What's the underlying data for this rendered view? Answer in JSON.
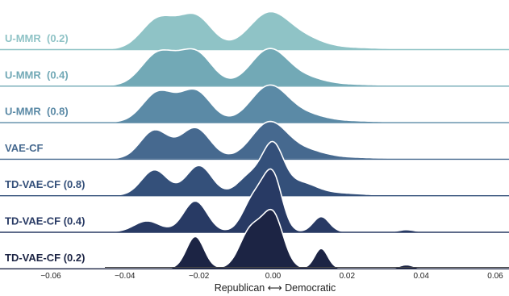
{
  "chart_data": {
    "type": "area",
    "title": "",
    "xlabel": "Republican ⟷ Democratic",
    "ylabel": "",
    "xlim": [
      -0.06,
      0.06
    ],
    "x_ticks": [
      "−0.06",
      "−0.04",
      "−0.02",
      "0.00",
      "0.02",
      "0.04",
      "0.06"
    ],
    "x_tick_values": [
      -0.06,
      -0.04,
      -0.02,
      0.0,
      0.02,
      0.04,
      0.06
    ],
    "grid": false,
    "legend": "none",
    "series": [
      {
        "name": "U-MMR  (0.2)",
        "color": "#8fc3c6",
        "label_color": "#8fc3c6",
        "x_range": [
          -0.045,
          0.06
        ],
        "peaks": [
          {
            "x": -0.031,
            "height": 0.82,
            "sigma": 0.0045
          },
          {
            "x": -0.021,
            "height": 0.9,
            "sigma": 0.0045
          },
          {
            "x": -0.001,
            "height": 1.0,
            "sigma": 0.0055
          },
          {
            "x": 0.009,
            "height": 0.22,
            "sigma": 0.005
          },
          {
            "x": 0.02,
            "height": 0.05,
            "sigma": 0.008
          }
        ]
      },
      {
        "name": "U-MMR  (0.4)",
        "color": "#72a9b6",
        "label_color": "#72a9b6",
        "x_range": [
          -0.045,
          0.06
        ],
        "peaks": [
          {
            "x": -0.031,
            "height": 0.88,
            "sigma": 0.0045
          },
          {
            "x": -0.021,
            "height": 0.92,
            "sigma": 0.0045
          },
          {
            "x": -0.001,
            "height": 1.0,
            "sigma": 0.005
          },
          {
            "x": 0.009,
            "height": 0.18,
            "sigma": 0.005
          },
          {
            "x": 0.02,
            "height": 0.04,
            "sigma": 0.008
          }
        ]
      },
      {
        "name": "U-MMR  (0.8)",
        "color": "#5b8aa6",
        "label_color": "#5b8aa6",
        "x_range": [
          -0.045,
          0.06
        ],
        "peaks": [
          {
            "x": -0.031,
            "height": 0.82,
            "sigma": 0.0042
          },
          {
            "x": -0.021,
            "height": 0.86,
            "sigma": 0.0042
          },
          {
            "x": -0.001,
            "height": 1.0,
            "sigma": 0.005
          },
          {
            "x": 0.009,
            "height": 0.18,
            "sigma": 0.005
          },
          {
            "x": 0.02,
            "height": 0.04,
            "sigma": 0.008
          }
        ]
      },
      {
        "name": "VAE-CF",
        "color": "#46698f",
        "label_color": "#46698f",
        "x_range": [
          -0.045,
          0.06
        ],
        "peaks": [
          {
            "x": -0.032,
            "height": 0.78,
            "sigma": 0.0038
          },
          {
            "x": -0.021,
            "height": 0.85,
            "sigma": 0.004
          },
          {
            "x": -0.001,
            "height": 1.0,
            "sigma": 0.0048
          },
          {
            "x": 0.009,
            "height": 0.2,
            "sigma": 0.005
          },
          {
            "x": 0.02,
            "height": 0.04,
            "sigma": 0.008
          }
        ]
      },
      {
        "name": "TD-VAE-CF (0.8)",
        "color": "#34507a",
        "label_color": "#34507a",
        "x_range": [
          -0.045,
          0.06
        ],
        "peaks": [
          {
            "x": -0.032,
            "height": 0.7,
            "sigma": 0.0035
          },
          {
            "x": -0.02,
            "height": 0.82,
            "sigma": 0.0035
          },
          {
            "x": -0.006,
            "height": 0.55,
            "sigma": 0.0035
          },
          {
            "x": 0.0,
            "height": 1.25,
            "sigma": 0.0028
          },
          {
            "x": 0.007,
            "height": 0.35,
            "sigma": 0.0045
          },
          {
            "x": 0.018,
            "height": 0.06,
            "sigma": 0.006
          }
        ]
      },
      {
        "name": "TD-VAE-CF (0.4)",
        "color": "#283a64",
        "label_color": "#283a64",
        "x_range": [
          -0.045,
          0.06
        ],
        "peaks": [
          {
            "x": -0.034,
            "height": 0.3,
            "sigma": 0.0035
          },
          {
            "x": -0.021,
            "height": 0.85,
            "sigma": 0.0032
          },
          {
            "x": -0.005,
            "height": 0.95,
            "sigma": 0.003
          },
          {
            "x": 0.0,
            "height": 1.45,
            "sigma": 0.0025
          },
          {
            "x": 0.013,
            "height": 0.42,
            "sigma": 0.0022
          },
          {
            "x": 0.036,
            "height": 0.06,
            "sigma": 0.002
          }
        ]
      },
      {
        "name": "TD-VAE-CF (0.2)",
        "color": "#1c2444",
        "label_color": "#1c2444",
        "x_range": [
          -0.045,
          0.06
        ],
        "peaks": [
          {
            "x": -0.021,
            "height": 0.88,
            "sigma": 0.0024
          },
          {
            "x": -0.006,
            "height": 1.05,
            "sigma": 0.003
          },
          {
            "x": 0.0,
            "height": 1.45,
            "sigma": 0.0028
          },
          {
            "x": 0.013,
            "height": 0.55,
            "sigma": 0.0018
          },
          {
            "x": 0.036,
            "height": 0.1,
            "sigma": 0.0018
          }
        ]
      }
    ]
  }
}
